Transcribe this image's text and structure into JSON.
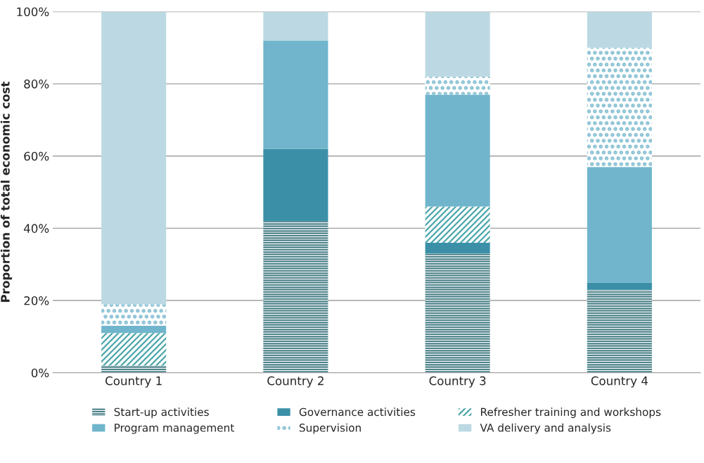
{
  "chart_data": {
    "type": "bar",
    "stacked": true,
    "ylabel": "Proportion of total economic cost",
    "categories": [
      "Country 1",
      "Country 2",
      "Country 3",
      "Country 4"
    ],
    "series": [
      {
        "name": "Start-up activities",
        "color": "#4a8088",
        "values": [
          2,
          42,
          33,
          23
        ]
      },
      {
        "name": "Governance activities",
        "color": "#3b90a8",
        "values": [
          0,
          20,
          3,
          2
        ]
      },
      {
        "name": "Refresher training and workshops",
        "color": "#4aa5aa",
        "values": [
          9,
          0,
          10,
          0
        ]
      },
      {
        "name": "Program management",
        "color": "#70b5cc",
        "values": [
          2,
          30,
          31,
          32
        ]
      },
      {
        "name": "Supervision",
        "color": "#8ec4d6",
        "values": [
          6,
          0,
          5,
          33
        ]
      },
      {
        "name": "VA delivery and analysis",
        "color": "#bcd9e3",
        "values": [
          81,
          8,
          18,
          10
        ]
      }
    ],
    "ylim": [
      0,
      100
    ],
    "yticks": [
      {
        "value": 0,
        "label": "0%"
      },
      {
        "value": 20,
        "label": "20%"
      },
      {
        "value": 40,
        "label": "40%"
      },
      {
        "value": 60,
        "label": "60%"
      },
      {
        "value": 80,
        "label": "80%"
      },
      {
        "value": 100,
        "label": "100%"
      }
    ],
    "grid": "y",
    "legend": "bottom"
  }
}
